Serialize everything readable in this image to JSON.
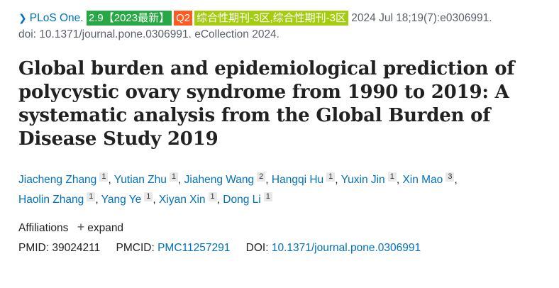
{
  "citation": {
    "journal": "PLoS One.",
    "impact_badge": "2.9【2023最新】",
    "quartile_badge": "Q2",
    "category_badge": "综合性期刊-3区,综合性期刊-3区",
    "details": "2024 Jul 18;19(7):e0306991.",
    "doi_line": "doi: 10.1371/journal.pone.0306991. eCollection 2024.",
    "colors": {
      "impact_badge": "#27a844",
      "quartile_badge": "#ff5a1f",
      "category_badge": "#a4cc10",
      "link": "#0071bc"
    }
  },
  "title": "Global burden and epidemiological prediction of polycystic ovary syndrome from 1990 to 2019: A systematic analysis from the Global Burden of Disease Study 2019",
  "authors": [
    {
      "name": "Jiacheng Zhang",
      "aff": "1"
    },
    {
      "name": "Yutian Zhu",
      "aff": "1"
    },
    {
      "name": "Jiaheng Wang",
      "aff": "2"
    },
    {
      "name": "Hangqi Hu",
      "aff": "1"
    },
    {
      "name": "Yuxin Jin",
      "aff": "1"
    },
    {
      "name": "Xin Mao",
      "aff": "3"
    },
    {
      "name": "Haolin Zhang",
      "aff": "1"
    },
    {
      "name": "Yang Ye",
      "aff": "1"
    },
    {
      "name": "Xiyan Xin",
      "aff": "1"
    },
    {
      "name": "Dong Li",
      "aff": "1"
    }
  ],
  "affiliations": {
    "label": "Affiliations",
    "expand_icon": "plus-icon",
    "expand_label": "expand"
  },
  "identifiers": {
    "pmid_label": "PMID:",
    "pmid": "39024211",
    "pmcid_label": "PMCID:",
    "pmcid": "PMC11257291",
    "doi_label": "DOI:",
    "doi": "10.1371/journal.pone.0306991"
  }
}
